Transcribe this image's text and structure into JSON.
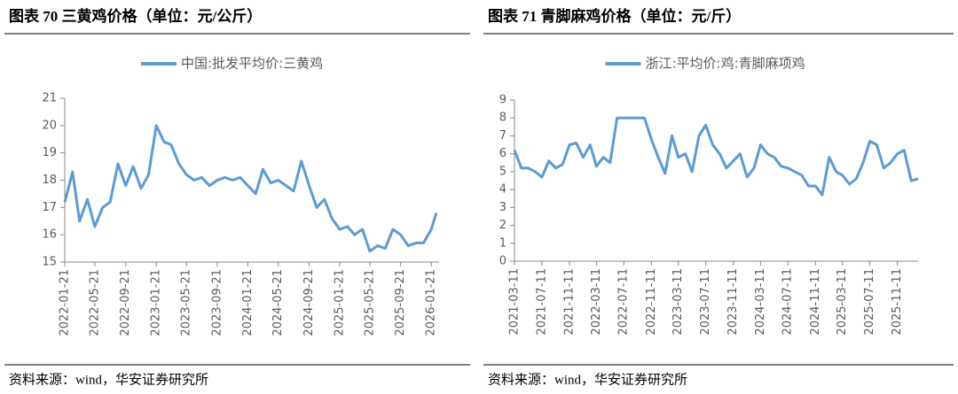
{
  "chart_data": [
    {
      "type": "line",
      "title": "图表 70 三黄鸡价格（单位：元/公斤）",
      "source": "资料来源：wind，华安证券研究所",
      "x": [
        "2022-01-21",
        "2022-02-21",
        "2022-03-21",
        "2022-04-21",
        "2022-05-21",
        "2022-06-21",
        "2022-07-21",
        "2022-08-21",
        "2022-09-21",
        "2022-10-21",
        "2022-11-21",
        "2022-12-21",
        "2023-01-21",
        "2023-02-21",
        "2023-03-21",
        "2023-04-21",
        "2023-05-21",
        "2023-06-21",
        "2023-07-21",
        "2023-08-21",
        "2023-09-21",
        "2023-10-21",
        "2023-11-21",
        "2023-12-21",
        "2024-01-21",
        "2024-02-21",
        "2024-03-21",
        "2024-04-21",
        "2024-05-21",
        "2024-06-21",
        "2024-07-21",
        "2024-08-21",
        "2024-09-21",
        "2024-10-21",
        "2024-11-21",
        "2024-12-21",
        "2025-01-21",
        "2025-02-21",
        "2025-03-21",
        "2025-04-21",
        "2025-05-21",
        "2025-06-21",
        "2025-07-21",
        "2025-08-21",
        "2025-09-21",
        "2025-10-21",
        "2025-11-21",
        "2025-12-21",
        "2026-01-21",
        "2026-02-10"
      ],
      "series": [
        {
          "name": "中国:批发平均价:三黄鸡",
          "color": "#5b9bd5",
          "values": [
            17.2,
            18.3,
            16.5,
            17.3,
            16.3,
            17.0,
            17.2,
            18.6,
            17.8,
            18.5,
            17.7,
            18.2,
            20.0,
            19.4,
            19.3,
            18.6,
            18.2,
            18.0,
            18.1,
            17.8,
            18.0,
            18.1,
            18.0,
            18.1,
            17.8,
            17.5,
            18.4,
            17.9,
            18.0,
            17.8,
            17.6,
            18.7,
            17.8,
            17.0,
            17.3,
            16.6,
            16.2,
            16.3,
            16.0,
            16.2,
            15.4,
            15.6,
            15.5,
            16.2,
            16.0,
            15.6,
            15.7,
            15.7,
            16.2,
            16.8
          ]
        }
      ],
      "xlim": [
        "2022-01-21",
        "2026-02-21"
      ],
      "xticks": [
        "2022-01-21",
        "2022-05-21",
        "2022-09-21",
        "2023-01-21",
        "2023-05-21",
        "2023-09-21",
        "2024-01-21",
        "2024-05-21",
        "2024-09-21",
        "2025-01-21",
        "2025-05-21",
        "2025-09-21",
        "2026-01-21"
      ],
      "ylim": [
        15,
        21
      ],
      "yticks": [
        15,
        16,
        17,
        18,
        19,
        20,
        21
      ]
    },
    {
      "type": "line",
      "title": "图表 71 青脚麻鸡价格（单位：元/斤）",
      "source": "资料来源：wind，华安证券研究所",
      "x": [
        "2021-03-11",
        "2021-04-11",
        "2021-05-11",
        "2021-06-11",
        "2021-07-11",
        "2021-08-11",
        "2021-09-11",
        "2021-10-11",
        "2021-11-11",
        "2021-12-11",
        "2022-01-11",
        "2022-02-11",
        "2022-03-11",
        "2022-04-11",
        "2022-05-11",
        "2022-06-11",
        "2022-07-11",
        "2022-08-11",
        "2022-09-11",
        "2022-10-11",
        "2022-11-11",
        "2022-12-11",
        "2023-01-11",
        "2023-02-11",
        "2023-03-11",
        "2023-04-11",
        "2023-05-11",
        "2023-06-11",
        "2023-07-11",
        "2023-08-11",
        "2023-09-11",
        "2023-10-11",
        "2023-11-11",
        "2023-12-11",
        "2024-01-11",
        "2024-02-11",
        "2024-03-11",
        "2024-04-11",
        "2024-05-11",
        "2024-06-11",
        "2024-07-11",
        "2024-08-11",
        "2024-09-11",
        "2024-10-11",
        "2024-11-11",
        "2024-12-11",
        "2025-01-11",
        "2025-02-11",
        "2025-03-11",
        "2025-04-11",
        "2025-05-11",
        "2025-06-11",
        "2025-07-11",
        "2025-08-11",
        "2025-09-11",
        "2025-10-11",
        "2025-11-11",
        "2025-12-11",
        "2026-01-11",
        "2026-02-11"
      ],
      "series": [
        {
          "name": "浙江:平均价:鸡:青脚麻项鸡",
          "color": "#5b9bd5",
          "values": [
            6.2,
            5.2,
            5.2,
            5.0,
            4.7,
            5.6,
            5.2,
            5.4,
            6.5,
            6.6,
            5.8,
            6.5,
            5.3,
            5.8,
            5.5,
            8.0,
            8.0,
            8.0,
            8.0,
            8.0,
            6.8,
            5.8,
            4.9,
            7.0,
            5.8,
            6.0,
            5.0,
            7.0,
            7.6,
            6.5,
            6.0,
            5.2,
            5.6,
            6.0,
            4.7,
            5.2,
            6.5,
            6.0,
            5.8,
            5.3,
            5.2,
            5.0,
            4.8,
            4.2,
            4.2,
            3.7,
            5.8,
            5.0,
            4.8,
            4.3,
            4.6,
            5.5,
            6.7,
            6.5,
            5.2,
            5.5,
            6.0,
            6.2,
            4.5,
            4.6
          ]
        }
      ],
      "xlim": [
        "2021-03-11",
        "2026-02-11"
      ],
      "xticks": [
        "2021-03-11",
        "2021-07-11",
        "2021-11-11",
        "2022-03-11",
        "2022-07-11",
        "2022-11-11",
        "2023-03-11",
        "2023-07-11",
        "2023-11-11",
        "2024-03-11",
        "2024-07-11",
        "2024-11-11",
        "2025-03-11",
        "2025-07-11",
        "2025-11-11"
      ],
      "ylim": [
        0,
        9
      ],
      "yticks": [
        0,
        1,
        2,
        3,
        4,
        5,
        6,
        7,
        8,
        9
      ]
    }
  ]
}
